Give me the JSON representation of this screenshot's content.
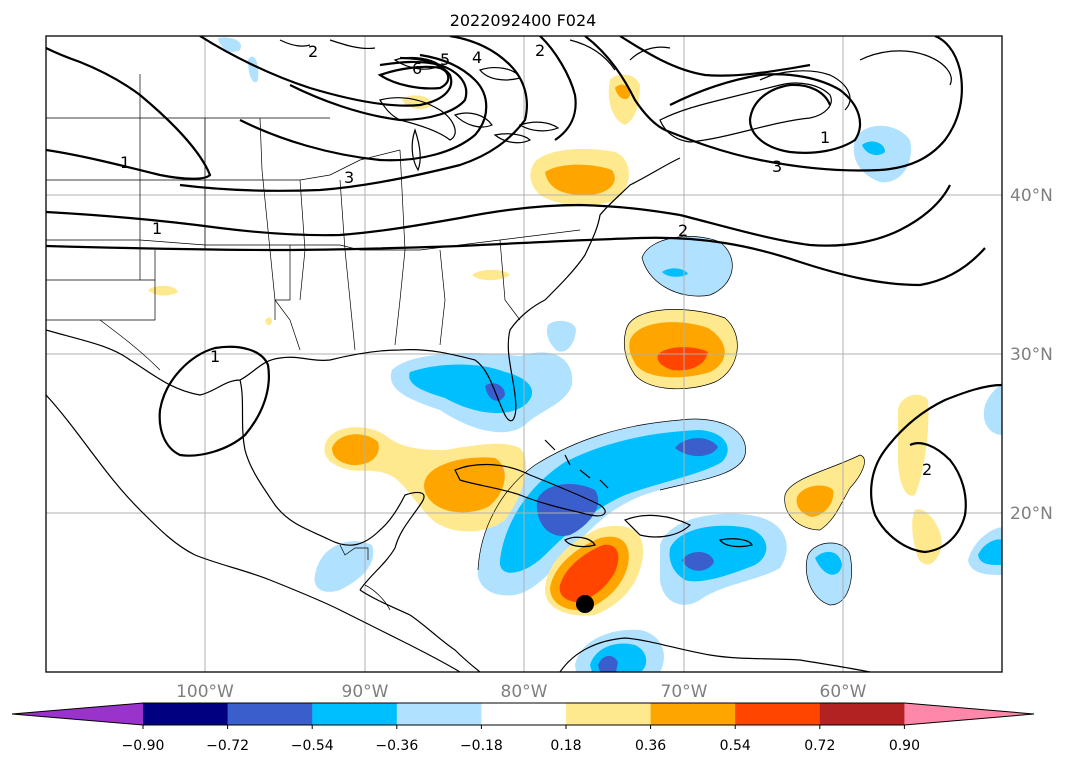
{
  "title": "2022092400 F024",
  "lon_labels": [
    "100°W",
    "90°W",
    "80°W",
    "70°W",
    "60°W"
  ],
  "lat_labels": [
    "40°N",
    "30°N",
    "20°N"
  ],
  "colorbar": {
    "ticks": [
      "−0.90",
      "−0.72",
      "−0.54",
      "−0.36",
      "−0.18",
      "0.18",
      "0.36",
      "0.54",
      "0.72",
      "0.90"
    ],
    "colors": [
      "#9933cc",
      "#000080",
      "#3a5fcd",
      "#00bfff",
      "#b0e2ff",
      "#ffffff",
      "#ffe98f",
      "#ffa500",
      "#ff4500",
      "#b22222",
      "#ff88aa"
    ]
  },
  "contour_labels": [
    "6",
    "5",
    "4",
    "2",
    "3",
    "1",
    "1",
    "1",
    "2",
    "3",
    "1",
    "2",
    "2"
  ],
  "marker": "storm-center-dot"
}
